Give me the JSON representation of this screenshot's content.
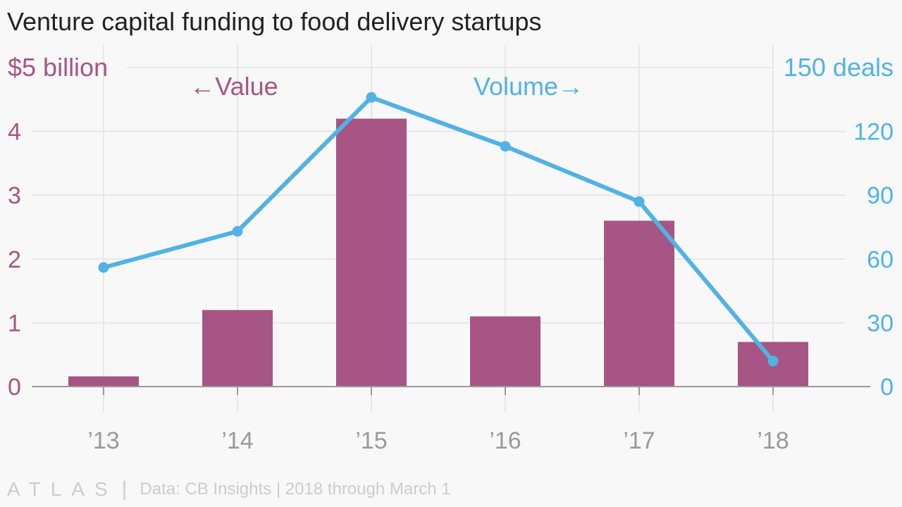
{
  "title": "Venture capital funding to food delivery startups",
  "footer": {
    "brand": "ATLAS",
    "separator": "|",
    "source": "Data: CB Insights | 2018 through March 1"
  },
  "colors": {
    "bar": "#a65584",
    "line": "#51b2e5",
    "grid": "#e6e6e6",
    "axis": "#999999",
    "tick_text": "#9a9a9a"
  },
  "chart_data": {
    "type": "bar+line",
    "categories": [
      "’13",
      "’14",
      "’15",
      "’16",
      "’17",
      "’18"
    ],
    "series": [
      {
        "name": "Value",
        "type": "bar",
        "axis": "left",
        "values": [
          0.16,
          1.2,
          4.2,
          1.1,
          2.6,
          0.7
        ]
      },
      {
        "name": "Volume",
        "type": "line",
        "axis": "right",
        "values": [
          56,
          73,
          136,
          113,
          87,
          12
        ]
      }
    ],
    "left_axis": {
      "ylim": [
        0,
        5
      ],
      "ticks": [
        0,
        1,
        2,
        3,
        4
      ],
      "top_label": "$5 billion"
    },
    "right_axis": {
      "ylim": [
        0,
        150
      ],
      "ticks": [
        0,
        30,
        60,
        90,
        120
      ],
      "top_label": "150 deals"
    },
    "annotations": {
      "value": "←Value",
      "volume": "Volume→"
    },
    "grid": true
  }
}
